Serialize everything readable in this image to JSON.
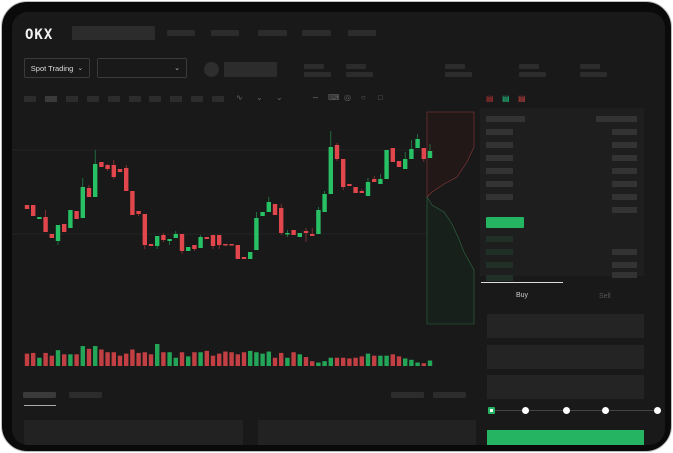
{
  "header": {
    "logo": "OKX",
    "market_selector": "Spot Trading"
  },
  "trade": {
    "tabs": [
      {
        "label": "Buy",
        "active": true
      },
      {
        "label": "Sell",
        "active": false
      }
    ],
    "slider_percent": 0
  },
  "colors": {
    "up": "#27c064",
    "down": "#e0464b",
    "background": "#191919",
    "buy_button": "#24b462"
  },
  "icons": [
    "chevron-down-icon",
    "order-book-both-icon",
    "order-book-bids-icon",
    "order-book-asks-icon",
    "indicator-icon",
    "draw-line-icon",
    "pencil-icon",
    "settings-icon",
    "fullscreen-icon"
  ],
  "chart_data": {
    "type": "candlestick",
    "ohlc_fields": [
      "open",
      "high",
      "low",
      "close"
    ],
    "ylim": [
      30,
      180
    ],
    "candles": [
      [
        97,
        97,
        93,
        93
      ],
      [
        97,
        97,
        86,
        86
      ],
      [
        83,
        85,
        83,
        85
      ],
      [
        85,
        92,
        70,
        70
      ],
      [
        68,
        68,
        64,
        64
      ],
      [
        61,
        77,
        57,
        77
      ],
      [
        78,
        78,
        70,
        70
      ],
      [
        74,
        92,
        74,
        92
      ],
      [
        91,
        91,
        83,
        83
      ],
      [
        84,
        124,
        84,
        115
      ],
      [
        114,
        117,
        105,
        105
      ],
      [
        105,
        152,
        105,
        138
      ],
      [
        140,
        140,
        135,
        135
      ],
      [
        137,
        138,
        131,
        133
      ],
      [
        137,
        142,
        123,
        125
      ],
      [
        133,
        133,
        130,
        130
      ],
      [
        134,
        137,
        111,
        111
      ],
      [
        111,
        111,
        87,
        87
      ],
      [
        91,
        91,
        86,
        88
      ],
      [
        88,
        88,
        53,
        57
      ],
      [
        58,
        58,
        56,
        56
      ],
      [
        56,
        66,
        53,
        66
      ],
      [
        67,
        69,
        60,
        62
      ],
      [
        61,
        63,
        57,
        63
      ],
      [
        64,
        71,
        64,
        68
      ],
      [
        68,
        68,
        48,
        51
      ],
      [
        51,
        55,
        51,
        55
      ],
      [
        57,
        57,
        51,
        53
      ],
      [
        54,
        67,
        54,
        65
      ],
      [
        65,
        65,
        63,
        63
      ],
      [
        67,
        67,
        53,
        56
      ],
      [
        67,
        67,
        53,
        57
      ],
      [
        58,
        58,
        57,
        57
      ],
      [
        58,
        58,
        57,
        57
      ],
      [
        57,
        57,
        43,
        43
      ],
      [
        45,
        45,
        43,
        43
      ],
      [
        43,
        50,
        43,
        50
      ],
      [
        52,
        90,
        52,
        84
      ],
      [
        86,
        90,
        86,
        90
      ],
      [
        90,
        105,
        90,
        100
      ],
      [
        98,
        98,
        87,
        87
      ],
      [
        94,
        98,
        67,
        69
      ],
      [
        68,
        72,
        65,
        69
      ],
      [
        72,
        72,
        67,
        67
      ],
      [
        65,
        69,
        65,
        69
      ],
      [
        71,
        74,
        60,
        69
      ],
      [
        68,
        74,
        66,
        66
      ],
      [
        68,
        95,
        68,
        92
      ],
      [
        90,
        111,
        90,
        108
      ],
      [
        108,
        171,
        108,
        155
      ],
      [
        157,
        159,
        141,
        143
      ],
      [
        143,
        143,
        112,
        115
      ],
      [
        118,
        118,
        116,
        116
      ],
      [
        115,
        115,
        109,
        109
      ],
      [
        111,
        113,
        109,
        109
      ],
      [
        106,
        124,
        106,
        120
      ],
      [
        123,
        126,
        120,
        120
      ],
      [
        118,
        128,
        118,
        123
      ],
      [
        123,
        152,
        123,
        152
      ],
      [
        154,
        154,
        140,
        140
      ],
      [
        141,
        141,
        135,
        135
      ],
      [
        133,
        150,
        133,
        143
      ],
      [
        143,
        162,
        143,
        153
      ],
      [
        154,
        168,
        154,
        163
      ],
      [
        154,
        154,
        140,
        143
      ],
      [
        144,
        158,
        144,
        151
      ]
    ],
    "volume": [
      36,
      38,
      24,
      38,
      30,
      46,
      34,
      34,
      34,
      58,
      50,
      58,
      48,
      40,
      40,
      30,
      36,
      48,
      38,
      40,
      34,
      64,
      40,
      40,
      24,
      40,
      28,
      40,
      40,
      44,
      30,
      36,
      42,
      40,
      34,
      40,
      44,
      40,
      36,
      42,
      24,
      38,
      24,
      40,
      34,
      26,
      14,
      10,
      14,
      24,
      24,
      24,
      22,
      24,
      28,
      36,
      30,
      30,
      30,
      34,
      28,
      22,
      18,
      10,
      8,
      16
    ]
  }
}
